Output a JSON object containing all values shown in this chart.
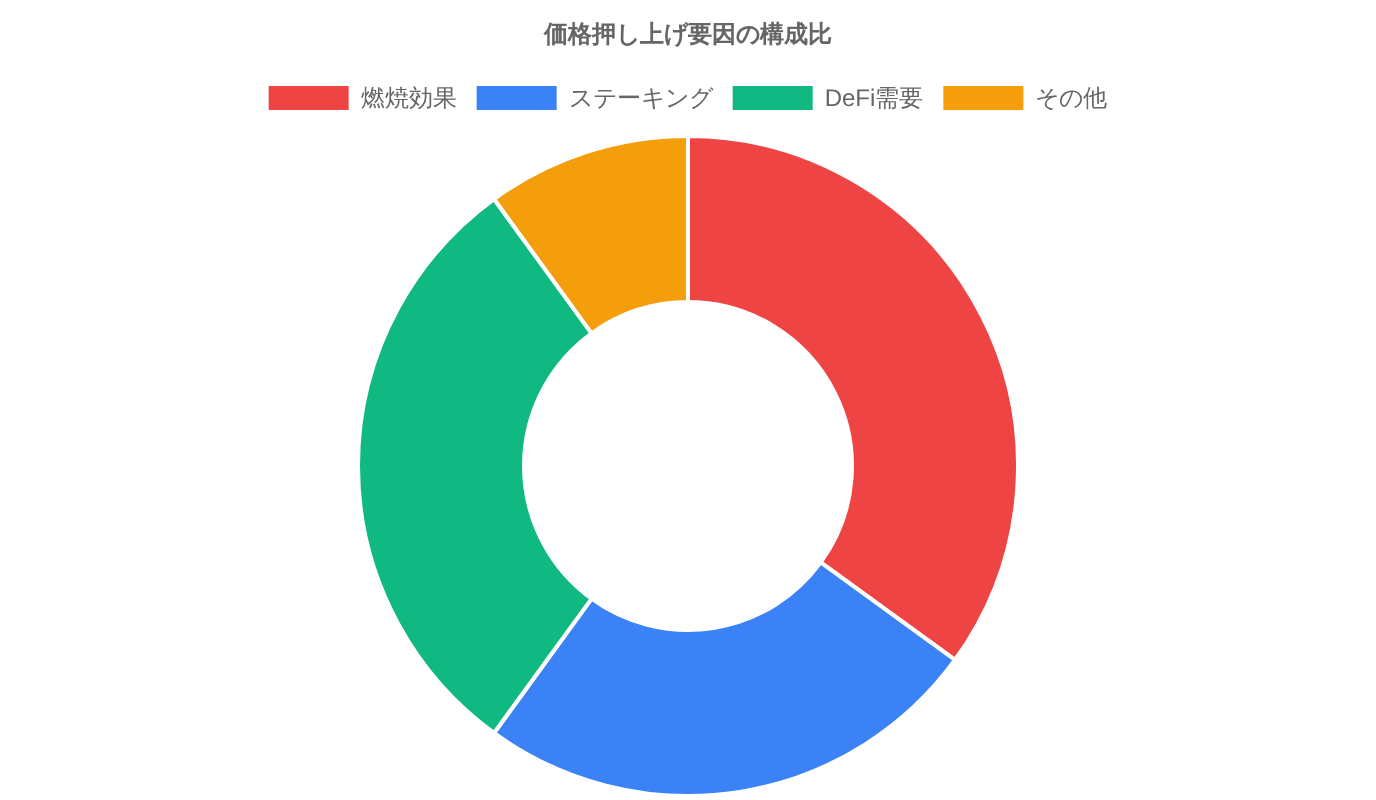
{
  "chart_data": {
    "type": "donut",
    "title": "価格押し上げ要因の構成比",
    "categories": [
      "燃焼効果",
      "ステーキング",
      "DeFi需要",
      "その他"
    ],
    "values": [
      35,
      25,
      30,
      10
    ],
    "colors": [
      "#ef4444",
      "#3b82f6",
      "#10b981",
      "#f59e0b"
    ],
    "legend": "top"
  }
}
